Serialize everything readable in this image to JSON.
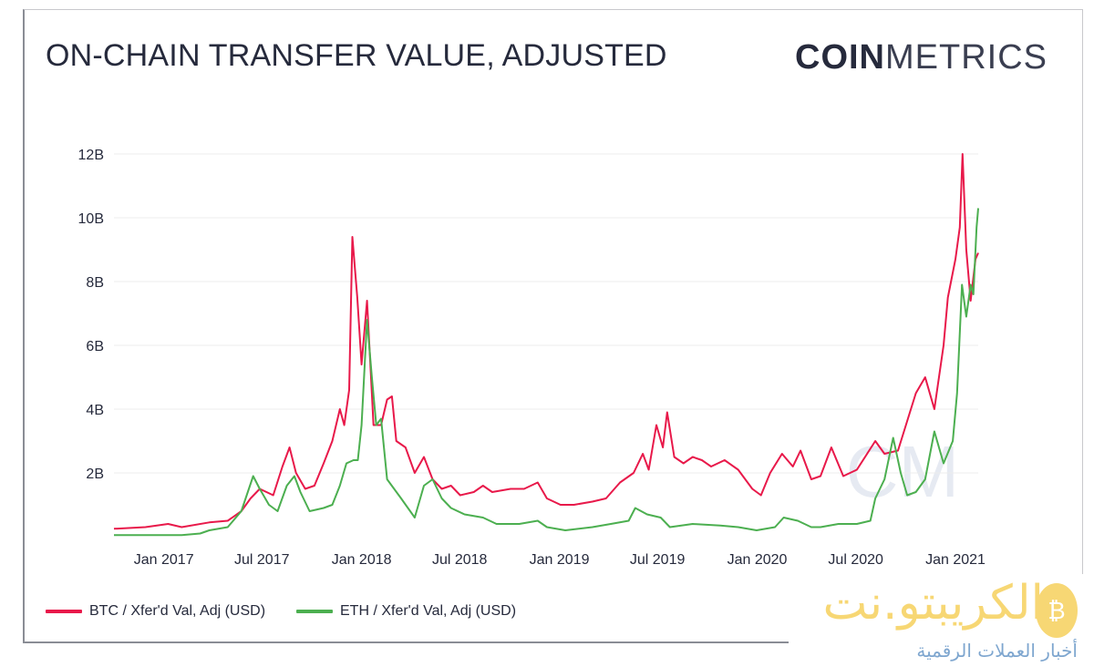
{
  "header": {
    "title": "ON-CHAIN TRANSFER VALUE, ADJUSTED",
    "brand_bold": "COIN",
    "brand_light": "METRICS"
  },
  "watermark": {
    "logo_text": "الكريبتو.نت",
    "tagline": "أخبار العملات الرقمية",
    "icon": "bitcoin-coin-icon"
  },
  "chart_data": {
    "type": "line",
    "title": "ON-CHAIN TRANSFER VALUE, ADJUSTED",
    "xlabel": "",
    "ylabel": "",
    "xlim": [
      "2016-10-01",
      "2021-02-12"
    ],
    "ylim": [
      0,
      12
    ],
    "grid": true,
    "legend": "bottom-left",
    "x_ticks": [
      {
        "date": "2017-01-01",
        "label": "Jan 2017"
      },
      {
        "date": "2017-07-01",
        "label": "Jul 2017"
      },
      {
        "date": "2018-01-01",
        "label": "Jan 2018"
      },
      {
        "date": "2018-07-01",
        "label": "Jul 2018"
      },
      {
        "date": "2019-01-01",
        "label": "Jan 2019"
      },
      {
        "date": "2019-07-01",
        "label": "Jul 2019"
      },
      {
        "date": "2020-01-01",
        "label": "Jan 2020"
      },
      {
        "date": "2020-07-01",
        "label": "Jul 2020"
      },
      {
        "date": "2021-01-01",
        "label": "Jan 2021"
      }
    ],
    "y_ticks": [
      {
        "value": 2,
        "label": "2B"
      },
      {
        "value": 4,
        "label": "4B"
      },
      {
        "value": 6,
        "label": "6B"
      },
      {
        "value": 8,
        "label": "8B"
      },
      {
        "value": 10,
        "label": "10B"
      },
      {
        "value": 12,
        "label": "12B"
      }
    ],
    "series": [
      {
        "name": "BTC / Xfer'd Val, Adj (USD)",
        "color": "#e8194a",
        "points": [
          [
            "2016-10-01",
            0.25
          ],
          [
            "2016-11-28",
            0.3
          ],
          [
            "2017-01-09",
            0.4
          ],
          [
            "2017-02-03",
            0.3
          ],
          [
            "2017-03-26",
            0.45
          ],
          [
            "2017-04-29",
            0.5
          ],
          [
            "2017-05-24",
            0.8
          ],
          [
            "2017-06-10",
            1.2
          ],
          [
            "2017-06-27",
            1.5
          ],
          [
            "2017-07-22",
            1.3
          ],
          [
            "2017-08-08",
            2.2
          ],
          [
            "2017-08-21",
            2.8
          ],
          [
            "2017-09-02",
            2.0
          ],
          [
            "2017-09-19",
            1.5
          ],
          [
            "2017-10-06",
            1.6
          ],
          [
            "2017-10-23",
            2.3
          ],
          [
            "2017-11-08",
            3.0
          ],
          [
            "2017-11-22",
            4.0
          ],
          [
            "2017-11-30",
            3.5
          ],
          [
            "2017-12-09",
            4.6
          ],
          [
            "2017-12-15",
            9.4
          ],
          [
            "2017-12-24",
            7.5
          ],
          [
            "2018-01-01",
            5.4
          ],
          [
            "2018-01-11",
            7.4
          ],
          [
            "2018-01-23",
            3.5
          ],
          [
            "2018-02-06",
            3.5
          ],
          [
            "2018-02-17",
            4.3
          ],
          [
            "2018-02-26",
            4.4
          ],
          [
            "2018-03-06",
            3.0
          ],
          [
            "2018-03-23",
            2.8
          ],
          [
            "2018-04-09",
            2.0
          ],
          [
            "2018-04-26",
            2.5
          ],
          [
            "2018-05-12",
            1.8
          ],
          [
            "2018-05-29",
            1.5
          ],
          [
            "2018-06-15",
            1.6
          ],
          [
            "2018-07-02",
            1.3
          ],
          [
            "2018-07-27",
            1.4
          ],
          [
            "2018-08-13",
            1.6
          ],
          [
            "2018-08-30",
            1.4
          ],
          [
            "2018-10-03",
            1.5
          ],
          [
            "2018-10-28",
            1.5
          ],
          [
            "2018-11-22",
            1.7
          ],
          [
            "2018-12-09",
            1.2
          ],
          [
            "2019-01-03",
            1.0
          ],
          [
            "2019-01-28",
            1.0
          ],
          [
            "2019-03-03",
            1.1
          ],
          [
            "2019-03-28",
            1.2
          ],
          [
            "2019-04-23",
            1.7
          ],
          [
            "2019-05-18",
            2.0
          ],
          [
            "2019-06-04",
            2.6
          ],
          [
            "2019-06-15",
            2.1
          ],
          [
            "2019-06-29",
            3.5
          ],
          [
            "2019-07-11",
            2.8
          ],
          [
            "2019-07-19",
            3.9
          ],
          [
            "2019-08-01",
            2.5
          ],
          [
            "2019-08-18",
            2.3
          ],
          [
            "2019-09-04",
            2.5
          ],
          [
            "2019-09-21",
            2.4
          ],
          [
            "2019-10-08",
            2.2
          ],
          [
            "2019-11-02",
            2.4
          ],
          [
            "2019-11-27",
            2.1
          ],
          [
            "2019-12-23",
            1.5
          ],
          [
            "2020-01-08",
            1.3
          ],
          [
            "2020-01-25",
            2.0
          ],
          [
            "2020-02-16",
            2.6
          ],
          [
            "2020-03-07",
            2.2
          ],
          [
            "2020-03-21",
            2.7
          ],
          [
            "2020-04-10",
            1.8
          ],
          [
            "2020-04-27",
            1.9
          ],
          [
            "2020-05-17",
            2.8
          ],
          [
            "2020-06-08",
            1.9
          ],
          [
            "2020-07-03",
            2.1
          ],
          [
            "2020-08-06",
            3.0
          ],
          [
            "2020-08-23",
            2.6
          ],
          [
            "2020-09-17",
            2.7
          ],
          [
            "2020-10-20",
            4.5
          ],
          [
            "2020-11-06",
            5.0
          ],
          [
            "2020-11-23",
            4.0
          ],
          [
            "2020-12-10",
            6.0
          ],
          [
            "2020-12-18",
            7.5
          ],
          [
            "2021-01-01",
            8.7
          ],
          [
            "2021-01-09",
            9.7
          ],
          [
            "2021-01-14",
            12.0
          ],
          [
            "2021-01-21",
            9.0
          ],
          [
            "2021-01-29",
            7.4
          ],
          [
            "2021-02-07",
            8.7
          ],
          [
            "2021-02-12",
            8.9
          ]
        ]
      },
      {
        "name": "ETH / Xfer'd Val, Adj (USD)",
        "color": "#4caf50",
        "points": [
          [
            "2016-10-01",
            0.05
          ],
          [
            "2017-02-03",
            0.05
          ],
          [
            "2017-03-09",
            0.1
          ],
          [
            "2017-03-26",
            0.2
          ],
          [
            "2017-04-29",
            0.3
          ],
          [
            "2017-05-24",
            0.8
          ],
          [
            "2017-06-15",
            1.9
          ],
          [
            "2017-06-27",
            1.5
          ],
          [
            "2017-07-14",
            1.0
          ],
          [
            "2017-07-30",
            0.8
          ],
          [
            "2017-08-16",
            1.6
          ],
          [
            "2017-08-30",
            1.9
          ],
          [
            "2017-09-10",
            1.4
          ],
          [
            "2017-09-27",
            0.8
          ],
          [
            "2017-10-23",
            0.9
          ],
          [
            "2017-11-08",
            1.0
          ],
          [
            "2017-11-22",
            1.6
          ],
          [
            "2017-12-04",
            2.3
          ],
          [
            "2017-12-17",
            2.4
          ],
          [
            "2017-12-25",
            2.4
          ],
          [
            "2018-01-01",
            3.5
          ],
          [
            "2018-01-11",
            6.8
          ],
          [
            "2018-01-20",
            5.0
          ],
          [
            "2018-01-28",
            3.5
          ],
          [
            "2018-02-06",
            3.7
          ],
          [
            "2018-02-17",
            1.8
          ],
          [
            "2018-03-15",
            1.2
          ],
          [
            "2018-04-09",
            0.6
          ],
          [
            "2018-04-26",
            1.6
          ],
          [
            "2018-05-12",
            1.8
          ],
          [
            "2018-05-29",
            1.2
          ],
          [
            "2018-06-15",
            0.9
          ],
          [
            "2018-07-10",
            0.7
          ],
          [
            "2018-08-13",
            0.6
          ],
          [
            "2018-09-07",
            0.4
          ],
          [
            "2018-10-19",
            0.4
          ],
          [
            "2018-11-22",
            0.5
          ],
          [
            "2018-12-09",
            0.3
          ],
          [
            "2019-01-12",
            0.2
          ],
          [
            "2019-03-03",
            0.3
          ],
          [
            "2019-04-06",
            0.4
          ],
          [
            "2019-05-09",
            0.5
          ],
          [
            "2019-05-21",
            0.9
          ],
          [
            "2019-06-12",
            0.7
          ],
          [
            "2019-07-07",
            0.6
          ],
          [
            "2019-07-24",
            0.3
          ],
          [
            "2019-09-04",
            0.4
          ],
          [
            "2019-10-25",
            0.35
          ],
          [
            "2019-11-27",
            0.3
          ],
          [
            "2019-12-31",
            0.2
          ],
          [
            "2020-02-03",
            0.3
          ],
          [
            "2020-02-19",
            0.6
          ],
          [
            "2020-03-16",
            0.5
          ],
          [
            "2020-04-10",
            0.3
          ],
          [
            "2020-04-27",
            0.3
          ],
          [
            "2020-05-30",
            0.4
          ],
          [
            "2020-07-03",
            0.4
          ],
          [
            "2020-07-28",
            0.5
          ],
          [
            "2020-08-06",
            1.2
          ],
          [
            "2020-08-23",
            1.8
          ],
          [
            "2020-09-08",
            3.1
          ],
          [
            "2020-09-22",
            2.0
          ],
          [
            "2020-10-04",
            1.3
          ],
          [
            "2020-10-20",
            1.4
          ],
          [
            "2020-11-06",
            1.8
          ],
          [
            "2020-11-23",
            3.3
          ],
          [
            "2020-12-10",
            2.3
          ],
          [
            "2020-12-27",
            3.0
          ],
          [
            "2021-01-04",
            4.5
          ],
          [
            "2021-01-13",
            7.9
          ],
          [
            "2021-01-21",
            6.9
          ],
          [
            "2021-01-29",
            7.9
          ],
          [
            "2021-02-03",
            7.6
          ],
          [
            "2021-02-09",
            9.7
          ],
          [
            "2021-02-12",
            10.3
          ]
        ]
      }
    ]
  }
}
